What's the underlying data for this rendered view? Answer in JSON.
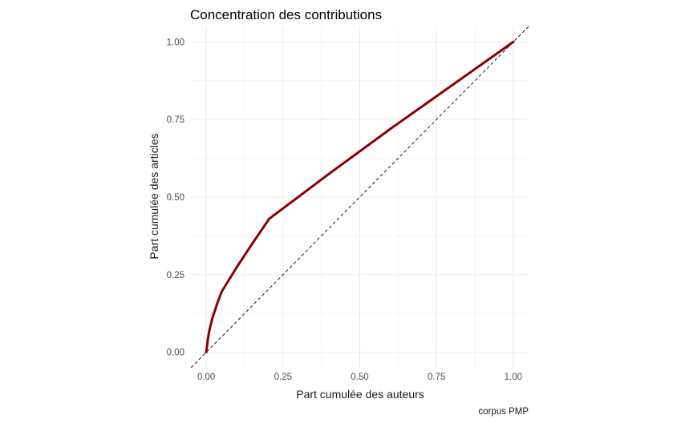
{
  "chart_data": {
    "type": "line",
    "title": "Concentration des contributions",
    "xlabel": "Part cumulée des auteurs",
    "ylabel": "Part cumulée des articles",
    "caption": "corpus PMP",
    "xlim": [
      -0.05,
      1.05
    ],
    "ylim": [
      -0.05,
      1.05
    ],
    "x_ticks": [
      0.0,
      0.25,
      0.5,
      0.75,
      1.0
    ],
    "x_tick_labels": [
      "0.00",
      "0.25",
      "0.50",
      "0.75",
      "1.00"
    ],
    "y_ticks": [
      0.0,
      0.25,
      0.5,
      0.75,
      1.0
    ],
    "y_tick_labels": [
      "0.00",
      "0.25",
      "0.50",
      "0.75",
      "1.00"
    ],
    "grid": true,
    "legend": "none",
    "series": [
      {
        "color": "#8b0000",
        "x": [
          0.0,
          0.005,
          0.01,
          0.02,
          0.035,
          0.05,
          0.075,
          0.1,
          0.15,
          0.205,
          0.4,
          0.6,
          0.8,
          1.0
        ],
        "y": [
          0.0,
          0.04,
          0.07,
          0.11,
          0.155,
          0.195,
          0.235,
          0.275,
          0.35,
          0.43,
          0.575,
          0.72,
          0.86,
          1.0
        ]
      }
    ],
    "reference_line": {
      "style": "dashed",
      "color": "#000000",
      "slope": 1,
      "intercept": 0
    }
  }
}
